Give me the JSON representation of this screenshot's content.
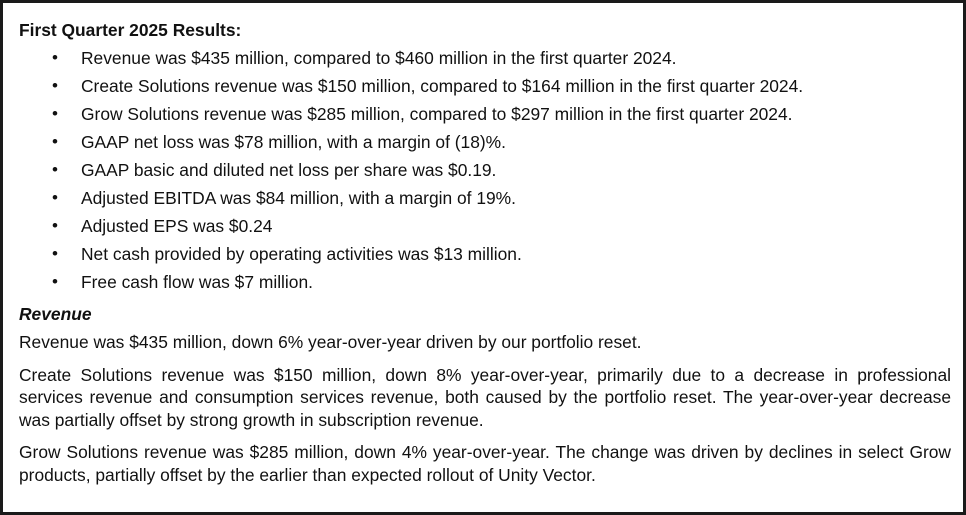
{
  "section_title": "First Quarter 2025 Results:",
  "bullets": [
    "Revenue was $435 million, compared to $460 million in the first quarter 2024.",
    "Create Solutions revenue was $150 million, compared to $164 million in the first quarter 2024.",
    "Grow Solutions revenue was $285 million, compared to $297 million in the first quarter 2024.",
    "GAAP net loss was $78 million, with a margin of (18)%.",
    "GAAP basic and diluted net loss per share was $0.19.",
    "Adjusted EBITDA was $84 million, with a margin of 19%.",
    "Adjusted EPS was $0.24",
    "Net cash provided by operating activities was $13 million.",
    "Free cash flow was $7 million."
  ],
  "bullet_glyph": "•",
  "subheading": "Revenue",
  "paragraphs": [
    "Revenue was $435 million, down 6% year-over-year driven by our portfolio reset.",
    "Create Solutions revenue was $150 million, down 8% year-over-year, primarily due to a decrease in professional services revenue and consumption services revenue, both caused by the portfolio reset. The year-over-year decrease was partially offset by strong growth in subscription revenue.",
    "Grow Solutions revenue was $285 million, down 4% year-over-year. The change was driven by declines in select Grow products, partially offset by the earlier than expected rollout of Unity Vector."
  ]
}
